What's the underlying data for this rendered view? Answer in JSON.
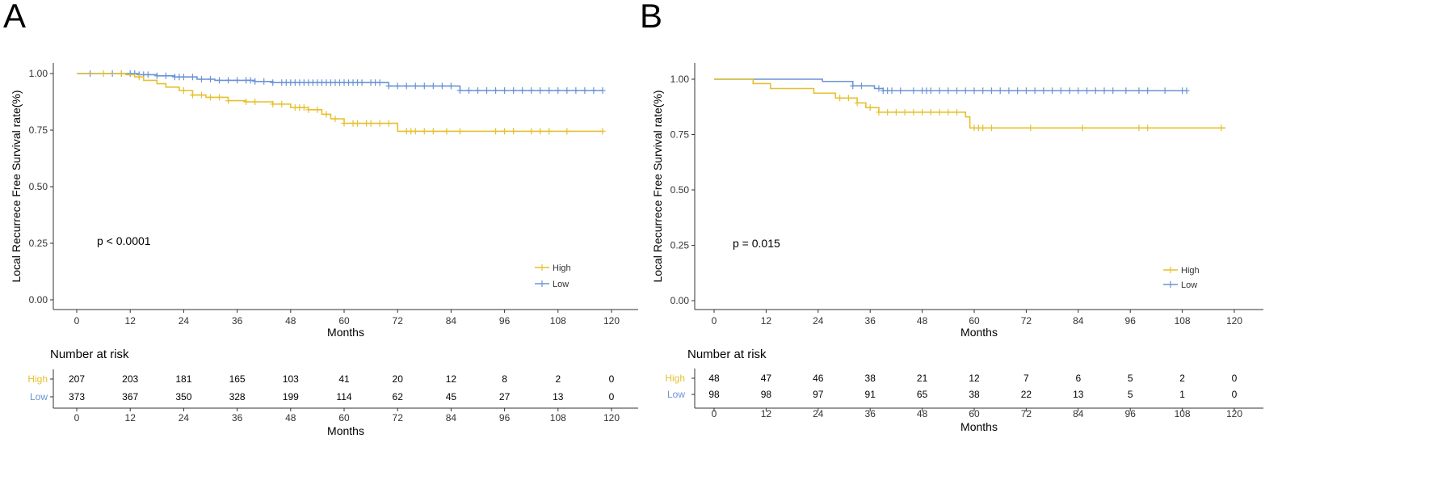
{
  "colors": {
    "high": "#E6C02F",
    "low": "#6B93D6",
    "axis": "#333333"
  },
  "chart_data": [
    {
      "panel_label": "A",
      "type": "line",
      "title": "",
      "xlabel": "Months",
      "ylabel": "Local Recurrece Free Survival rate(%)",
      "xlim": [
        0,
        120
      ],
      "ylim": [
        0,
        1
      ],
      "x_ticks": [
        0,
        12,
        24,
        36,
        48,
        60,
        72,
        84,
        96,
        108,
        120
      ],
      "x_tick_labels": [
        "0",
        "12",
        "24",
        "36",
        "48",
        "60",
        "72",
        "84",
        "96",
        "108",
        "120"
      ],
      "y_ticks": [
        0,
        0.25,
        0.5,
        0.75,
        1
      ],
      "y_tick_labels": [
        "0.00",
        "0.25",
        "0.50",
        "0.75",
        "1.00"
      ],
      "p_value": "p < 0.0001",
      "legend": [
        "High",
        "Low"
      ],
      "legend_position": "bottom-right",
      "series": [
        {
          "name": "High",
          "steps": [
            [
              0,
              1.0
            ],
            [
              11,
              0.995
            ],
            [
              13,
              0.985
            ],
            [
              15,
              0.97
            ],
            [
              18,
              0.955
            ],
            [
              20,
              0.94
            ],
            [
              23,
              0.925
            ],
            [
              26,
              0.905
            ],
            [
              29,
              0.895
            ],
            [
              34,
              0.88
            ],
            [
              38,
              0.875
            ],
            [
              44,
              0.865
            ],
            [
              48,
              0.85
            ],
            [
              52,
              0.84
            ],
            [
              55,
              0.82
            ],
            [
              57,
              0.8
            ],
            [
              60,
              0.78
            ],
            [
              72,
              0.745
            ],
            [
              118,
              0.745
            ]
          ],
          "censor_times": [
            6,
            10,
            14,
            24,
            26,
            28,
            30,
            32,
            34,
            38,
            40,
            44,
            46,
            49,
            50,
            51,
            52,
            54,
            56,
            58,
            60,
            62,
            63,
            65,
            66,
            68,
            70,
            74,
            75,
            76,
            78,
            80,
            83,
            86,
            94,
            96,
            98,
            102,
            104,
            106,
            110,
            118
          ]
        },
        {
          "name": "Low",
          "steps": [
            [
              0,
              1.0
            ],
            [
              14,
              0.995
            ],
            [
              18,
              0.99
            ],
            [
              22,
              0.985
            ],
            [
              27,
              0.975
            ],
            [
              31,
              0.97
            ],
            [
              40,
              0.965
            ],
            [
              44,
              0.96
            ],
            [
              70,
              0.945
            ],
            [
              86,
              0.925
            ],
            [
              118,
              0.925
            ]
          ],
          "censor_times": [
            3,
            8,
            10,
            12,
            13,
            14,
            15,
            16,
            18,
            20,
            22,
            23,
            24,
            26,
            28,
            30,
            32,
            34,
            36,
            38,
            39,
            40,
            42,
            44,
            46,
            47,
            48,
            49,
            50,
            51,
            52,
            53,
            54,
            55,
            56,
            57,
            58,
            59,
            60,
            61,
            62,
            63,
            64,
            66,
            67,
            68,
            70,
            72,
            74,
            76,
            78,
            80,
            82,
            84,
            86,
            88,
            90,
            92,
            94,
            96,
            98,
            100,
            102,
            104,
            106,
            108,
            110,
            112,
            114,
            116,
            118
          ]
        }
      ],
      "risk_table": {
        "title": "Number at risk",
        "rows": [
          {
            "group": "High",
            "values": [
              "207",
              "203",
              "181",
              "165",
              "103",
              "41",
              "20",
              "12",
              "8",
              "2",
              "0"
            ]
          },
          {
            "group": "Low",
            "values": [
              "373",
              "367",
              "350",
              "328",
              "199",
              "114",
              "62",
              "45",
              "27",
              "13",
              "0"
            ]
          }
        ],
        "xlabel": "Months",
        "x_tick_labels": [
          "0",
          "12",
          "24",
          "36",
          "48",
          "60",
          "72",
          "84",
          "96",
          "108",
          "120"
        ]
      }
    },
    {
      "panel_label": "B",
      "type": "line",
      "title": "",
      "xlabel": "Months",
      "ylabel": "Local Recurrece Free Survival rate(%)",
      "xlim": [
        0,
        120
      ],
      "ylim": [
        0,
        1
      ],
      "x_ticks": [
        0,
        12,
        24,
        36,
        48,
        60,
        72,
        84,
        96,
        108,
        120
      ],
      "x_tick_labels": [
        "0",
        "12",
        "24",
        "36",
        "48",
        "60",
        "72",
        "84",
        "96",
        "108",
        "120"
      ],
      "y_ticks": [
        0,
        0.25,
        0.5,
        0.75,
        1
      ],
      "y_tick_labels": [
        "0.00",
        "0.25",
        "0.50",
        "0.75",
        "1.00"
      ],
      "p_value": "p = 0.015",
      "legend": [
        "High",
        "Low"
      ],
      "legend_position": "bottom-right",
      "series": [
        {
          "name": "High",
          "steps": [
            [
              0,
              1.0
            ],
            [
              9,
              0.98
            ],
            [
              13,
              0.958
            ],
            [
              23,
              0.937
            ],
            [
              28,
              0.915
            ],
            [
              33,
              0.893
            ],
            [
              35,
              0.872
            ],
            [
              38,
              0.851
            ],
            [
              58,
              0.83
            ],
            [
              59,
              0.78
            ],
            [
              118,
              0.78
            ]
          ],
          "censor_times": [
            29,
            31,
            33,
            36,
            38,
            40,
            42,
            44,
            46,
            48,
            50,
            52,
            54,
            56,
            60,
            61,
            62,
            64,
            73,
            85,
            98,
            100,
            117
          ]
        },
        {
          "name": "Low",
          "steps": [
            [
              0,
              1.0
            ],
            [
              25,
              0.99
            ],
            [
              32,
              0.97
            ],
            [
              37,
              0.958
            ],
            [
              39,
              0.948
            ],
            [
              109,
              0.948
            ]
          ],
          "censor_times": [
            32,
            34,
            38,
            39,
            40,
            41,
            43,
            46,
            48,
            49,
            50,
            52,
            54,
            56,
            58,
            60,
            62,
            64,
            66,
            68,
            70,
            72,
            74,
            76,
            78,
            80,
            82,
            84,
            86,
            88,
            90,
            92,
            95,
            98,
            100,
            104,
            108,
            109
          ]
        }
      ],
      "risk_table": {
        "title": "Number at risk",
        "rows": [
          {
            "group": "High",
            "values": [
              "48",
              "47",
              "46",
              "38",
              "21",
              "12",
              "7",
              "6",
              "5",
              "2",
              "0"
            ]
          },
          {
            "group": "Low",
            "values": [
              "98",
              "98",
              "97",
              "91",
              "65",
              "38",
              "22",
              "13",
              "5",
              "1",
              "0"
            ]
          }
        ],
        "xlabel": "Months",
        "x_tick_labels": [
          "0",
          "12",
          "24",
          "36",
          "48",
          "60",
          "72",
          "84",
          "96",
          "108",
          "120"
        ]
      }
    }
  ]
}
